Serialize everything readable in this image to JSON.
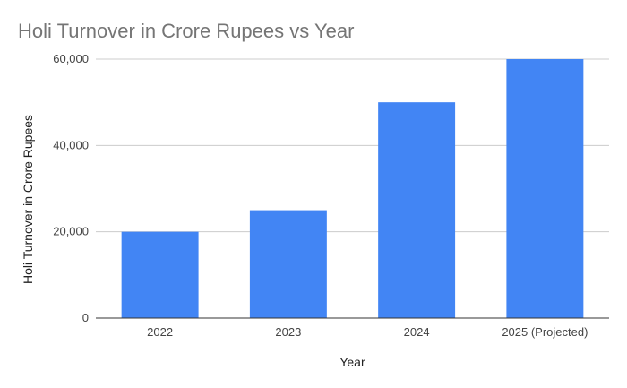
{
  "chart_data": {
    "type": "bar",
    "title": "Holi Turnover in Crore Rupees vs Year",
    "xlabel": "Year",
    "ylabel": "Holi Turnover in Crore Rupees",
    "categories": [
      "2022",
      "2023",
      "2024",
      "2025 (Projected)"
    ],
    "values": [
      20000,
      25000,
      50000,
      60000
    ],
    "ylim": [
      0,
      60000
    ],
    "yticks": [
      0,
      20000,
      40000,
      60000
    ],
    "ytick_labels": [
      "0",
      "20,000",
      "40,000",
      "60,000"
    ],
    "grid": true,
    "legend": "none",
    "colors": {
      "bar": "#4285f4",
      "title": "#757575",
      "grid": "#cccccc",
      "baseline": "#333333"
    }
  }
}
